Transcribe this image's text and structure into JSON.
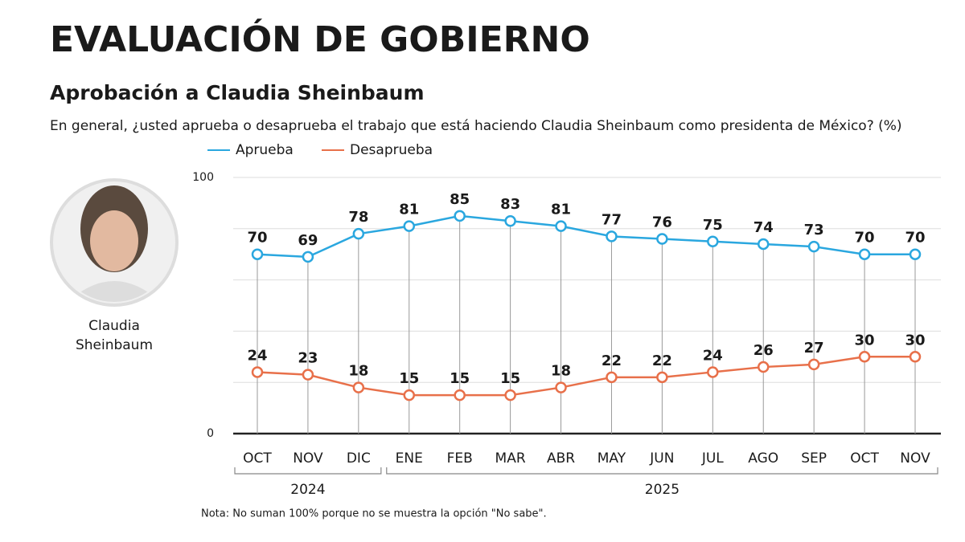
{
  "chart_data": {
    "type": "line",
    "title": "EVALUACIÓN DE GOBIERNO",
    "subtitle": "Aprobación a Claudia Sheinbaum",
    "question": "En general, ¿usted aprueba o desaprueba el trabajo que está haciendo Claudia Sheinbaum como presidenta de México?  (%)",
    "photo_caption": [
      "Claudia",
      "Sheinbaum"
    ],
    "categories": [
      "OCT",
      "NOV",
      "DIC",
      "ENE",
      "FEB",
      "MAR",
      "ABR",
      "MAY",
      "JUN",
      "JUL",
      "AGO",
      "SEP",
      "OCT",
      "NOV"
    ],
    "groups": [
      {
        "label": "2024",
        "first": 0,
        "last": 2
      },
      {
        "label": "2025",
        "first": 3,
        "last": 13
      }
    ],
    "series": [
      {
        "name": "Aprueba",
        "color": "#2aa7df",
        "values": [
          70,
          69,
          78,
          81,
          85,
          83,
          81,
          77,
          76,
          75,
          74,
          73,
          70,
          70
        ]
      },
      {
        "name": "Desaprueba",
        "color": "#e8704a",
        "values": [
          24,
          23,
          18,
          15,
          15,
          15,
          18,
          22,
          22,
          24,
          26,
          27,
          30,
          30
        ]
      }
    ],
    "ylim": [
      0,
      100
    ],
    "yticks": [
      0,
      100
    ],
    "grid_yticks": [
      20,
      40,
      60,
      80
    ],
    "grid": true,
    "note": "Nota: No suman 100% porque no se muestra la opción \"No sabe\"."
  }
}
